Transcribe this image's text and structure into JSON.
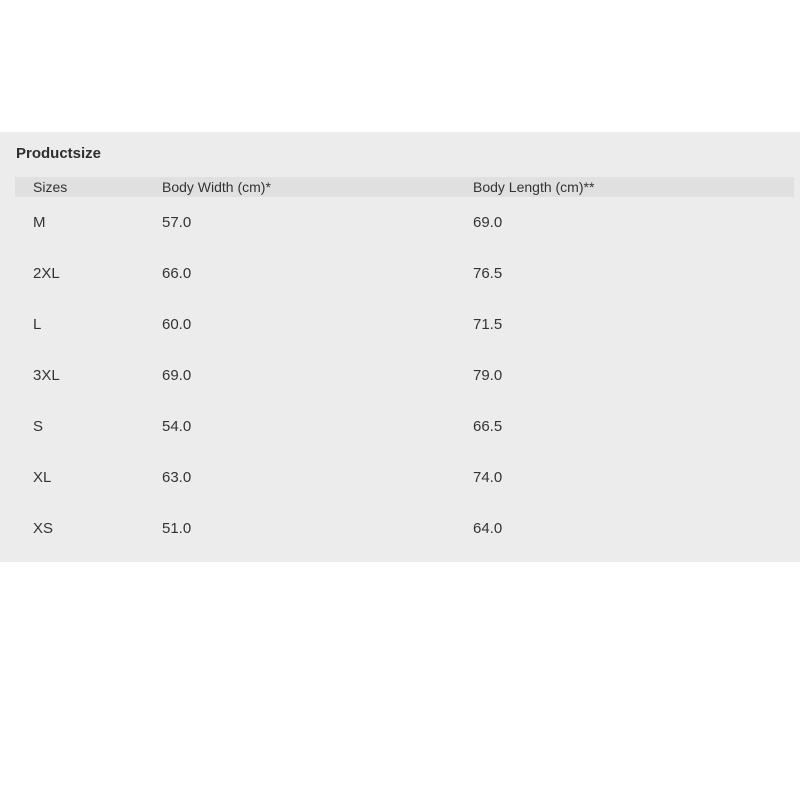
{
  "colors": {
    "page_background": "#ffffff",
    "panel_background": "#ececec",
    "header_row_background": "#e0e0e0",
    "text": "#333333"
  },
  "panel": {
    "title": "Productsize"
  },
  "table": {
    "columns": [
      "Sizes",
      "Body Width (cm)*",
      "Body Length (cm)**"
    ],
    "rows": [
      {
        "size": "M",
        "body_width": "57.0",
        "body_length": "69.0"
      },
      {
        "size": "2XL",
        "body_width": "66.0",
        "body_length": "76.5"
      },
      {
        "size": "L",
        "body_width": "60.0",
        "body_length": "71.5"
      },
      {
        "size": "3XL",
        "body_width": "69.0",
        "body_length": "79.0"
      },
      {
        "size": "S",
        "body_width": "54.0",
        "body_length": "66.5"
      },
      {
        "size": "XL",
        "body_width": "63.0",
        "body_length": "74.0"
      },
      {
        "size": "XS",
        "body_width": "51.0",
        "body_length": "64.0"
      }
    ]
  }
}
